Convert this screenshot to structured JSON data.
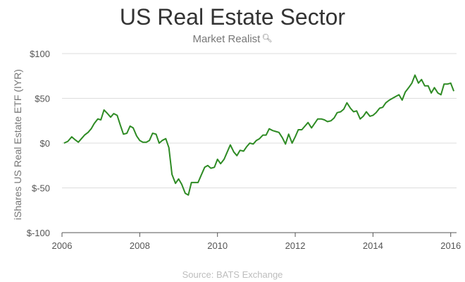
{
  "header": {
    "title": "US Real Estate Sector",
    "brand": "Market Realist",
    "brand_icon": "magnifier-icon"
  },
  "footer": {
    "source": "Source: BATS Exchange"
  },
  "colors": {
    "line": "#2e8b24",
    "grid": "#dddddd",
    "axis": "#555555"
  },
  "chart_data": {
    "type": "line",
    "title": "US Real Estate Sector",
    "xlabel": "",
    "ylabel": "iShares US Real Estate ETF (IYR)",
    "xlim": [
      2006.0,
      2016.15
    ],
    "ylim": [
      -100,
      100
    ],
    "x_ticks": [
      2006,
      2008,
      2010,
      2012,
      2014,
      2016
    ],
    "x_tick_labels": [
      "2006",
      "2008",
      "2010",
      "2012",
      "2014",
      "2016"
    ],
    "y_ticks": [
      100,
      50,
      0,
      -50,
      -100
    ],
    "y_tick_labels": [
      "$100",
      "$50",
      "$0",
      "$-50",
      "$-100"
    ],
    "grid": true,
    "legend": "none",
    "series": [
      {
        "color": "#2e8b24",
        "points": [
          [
            2006.05,
            0
          ],
          [
            2006.15,
            2
          ],
          [
            2006.25,
            7
          ],
          [
            2006.33,
            4
          ],
          [
            2006.42,
            1
          ],
          [
            2006.5,
            5
          ],
          [
            2006.58,
            9
          ],
          [
            2006.67,
            12
          ],
          [
            2006.75,
            16
          ],
          [
            2006.83,
            22
          ],
          [
            2006.92,
            27
          ],
          [
            2007.0,
            26
          ],
          [
            2007.08,
            37
          ],
          [
            2007.17,
            33
          ],
          [
            2007.25,
            29
          ],
          [
            2007.33,
            33
          ],
          [
            2007.42,
            31
          ],
          [
            2007.5,
            20
          ],
          [
            2007.58,
            10
          ],
          [
            2007.67,
            11
          ],
          [
            2007.75,
            19
          ],
          [
            2007.83,
            17
          ],
          [
            2007.92,
            8
          ],
          [
            2008.0,
            3
          ],
          [
            2008.08,
            1
          ],
          [
            2008.17,
            1
          ],
          [
            2008.25,
            3
          ],
          [
            2008.33,
            11
          ],
          [
            2008.42,
            10
          ],
          [
            2008.5,
            0
          ],
          [
            2008.58,
            3
          ],
          [
            2008.67,
            5
          ],
          [
            2008.75,
            -5
          ],
          [
            2008.83,
            -35
          ],
          [
            2008.92,
            -45
          ],
          [
            2009.0,
            -40
          ],
          [
            2009.08,
            -46
          ],
          [
            2009.17,
            -56
          ],
          [
            2009.25,
            -58
          ],
          [
            2009.33,
            -44
          ],
          [
            2009.42,
            -44
          ],
          [
            2009.5,
            -44
          ],
          [
            2009.58,
            -36
          ],
          [
            2009.67,
            -27
          ],
          [
            2009.75,
            -25
          ],
          [
            2009.83,
            -28
          ],
          [
            2009.92,
            -27
          ],
          [
            2010.0,
            -18
          ],
          [
            2010.08,
            -23
          ],
          [
            2010.17,
            -18
          ],
          [
            2010.25,
            -10
          ],
          [
            2010.33,
            -2
          ],
          [
            2010.42,
            -10
          ],
          [
            2010.5,
            -14
          ],
          [
            2010.58,
            -8
          ],
          [
            2010.67,
            -9
          ],
          [
            2010.75,
            -4
          ],
          [
            2010.83,
            0
          ],
          [
            2010.92,
            -1
          ],
          [
            2011.0,
            3
          ],
          [
            2011.08,
            5
          ],
          [
            2011.17,
            9
          ],
          [
            2011.25,
            9
          ],
          [
            2011.33,
            16
          ],
          [
            2011.42,
            14
          ],
          [
            2011.5,
            13
          ],
          [
            2011.58,
            12
          ],
          [
            2011.67,
            6
          ],
          [
            2011.75,
            -1
          ],
          [
            2011.83,
            10
          ],
          [
            2011.92,
            0
          ],
          [
            2012.0,
            7
          ],
          [
            2012.08,
            15
          ],
          [
            2012.17,
            15
          ],
          [
            2012.25,
            19
          ],
          [
            2012.33,
            23
          ],
          [
            2012.42,
            17
          ],
          [
            2012.5,
            22
          ],
          [
            2012.58,
            27
          ],
          [
            2012.67,
            27
          ],
          [
            2012.75,
            26
          ],
          [
            2012.83,
            24
          ],
          [
            2012.92,
            25
          ],
          [
            2013.0,
            28
          ],
          [
            2013.08,
            34
          ],
          [
            2013.17,
            35
          ],
          [
            2013.25,
            38
          ],
          [
            2013.33,
            45
          ],
          [
            2013.42,
            39
          ],
          [
            2013.5,
            35
          ],
          [
            2013.58,
            36
          ],
          [
            2013.67,
            27
          ],
          [
            2013.75,
            30
          ],
          [
            2013.83,
            35
          ],
          [
            2013.92,
            30
          ],
          [
            2014.0,
            31
          ],
          [
            2014.08,
            34
          ],
          [
            2014.17,
            39
          ],
          [
            2014.25,
            40
          ],
          [
            2014.33,
            45
          ],
          [
            2014.42,
            48
          ],
          [
            2014.5,
            50
          ],
          [
            2014.58,
            52
          ],
          [
            2014.67,
            54
          ],
          [
            2014.75,
            48
          ],
          [
            2014.83,
            57
          ],
          [
            2014.92,
            62
          ],
          [
            2015.0,
            67
          ],
          [
            2015.08,
            76
          ],
          [
            2015.17,
            67
          ],
          [
            2015.25,
            71
          ],
          [
            2015.33,
            64
          ],
          [
            2015.42,
            64
          ],
          [
            2015.5,
            56
          ],
          [
            2015.58,
            62
          ],
          [
            2015.67,
            56
          ],
          [
            2015.75,
            54
          ],
          [
            2015.83,
            66
          ],
          [
            2015.92,
            66
          ],
          [
            2016.0,
            67
          ],
          [
            2016.08,
            58
          ]
        ]
      }
    ]
  }
}
